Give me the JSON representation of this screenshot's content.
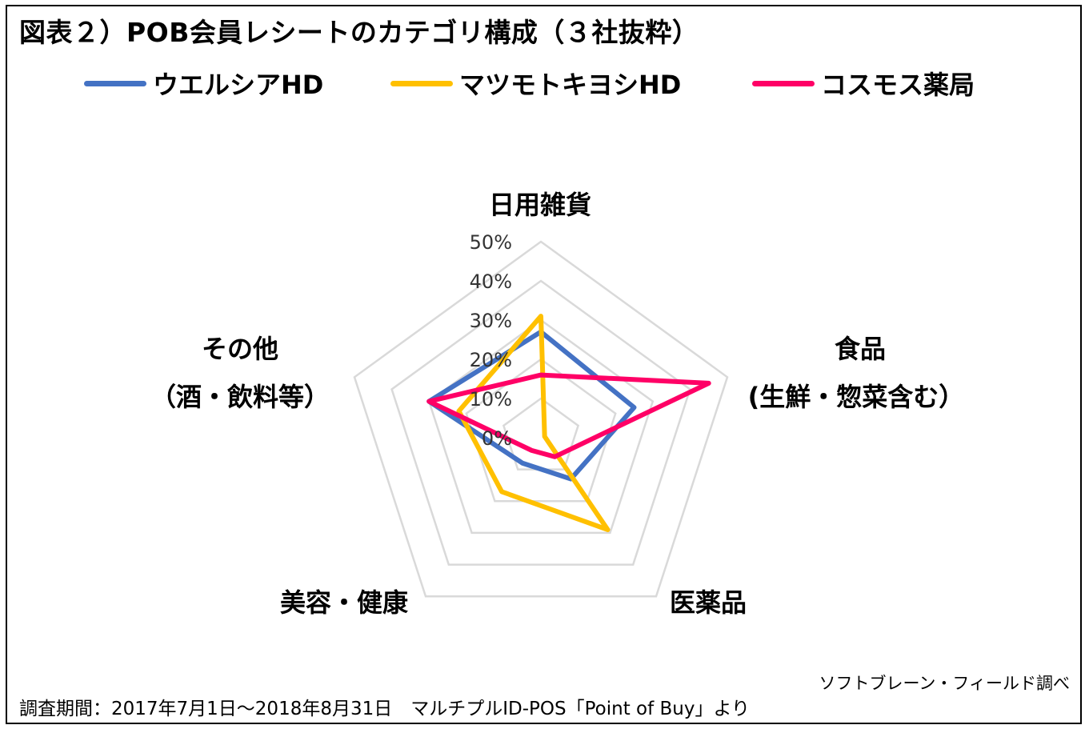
{
  "title": "図表２）POB会員レシートのカテゴリ構成（３社抜粋）",
  "legend": [
    {
      "label": "ウエルシアHD",
      "color": "#4472C4"
    },
    {
      "label": "マツモトキヨシHD",
      "color": "#FFC000"
    },
    {
      "label": "コスモス薬局",
      "color": "#FF0066"
    }
  ],
  "axes_labels": {
    "daily": "日用雑貨",
    "food_line1": "食品",
    "food_line2": "(生鮮・惣菜含む）",
    "medicine": "医薬品",
    "beauty": "美容・健康",
    "other_line1": "その他",
    "other_line2": "（酒・飲料等）"
  },
  "source": "ソフトブレーン・フィールド調べ",
  "period": "調査期間：2017年7月1日～2018年8月31日　マルチプルID-POS「Point of Buy」より",
  "chart_data": {
    "type": "radar",
    "categories": [
      "日用雑貨",
      "食品 (生鮮・惣菜含む）",
      "医薬品",
      "美容・健康",
      "その他（酒・飲料等）"
    ],
    "ticks": [
      "0%",
      "10%",
      "20%",
      "30%",
      "40%",
      "50%"
    ],
    "rmax": 50,
    "series": [
      {
        "name": "ウエルシアHD",
        "color": "#4472C4",
        "values": [
          27,
          25,
          13,
          8,
          30
        ]
      },
      {
        "name": "マツモトキヨシHD",
        "color": "#FFC000",
        "values": [
          31,
          1,
          29,
          17,
          22
        ]
      },
      {
        "name": "コスモス薬局",
        "color": "#FF0066",
        "values": [
          16,
          45,
          6,
          4,
          30
        ]
      }
    ],
    "grid": true,
    "legend": "top"
  }
}
